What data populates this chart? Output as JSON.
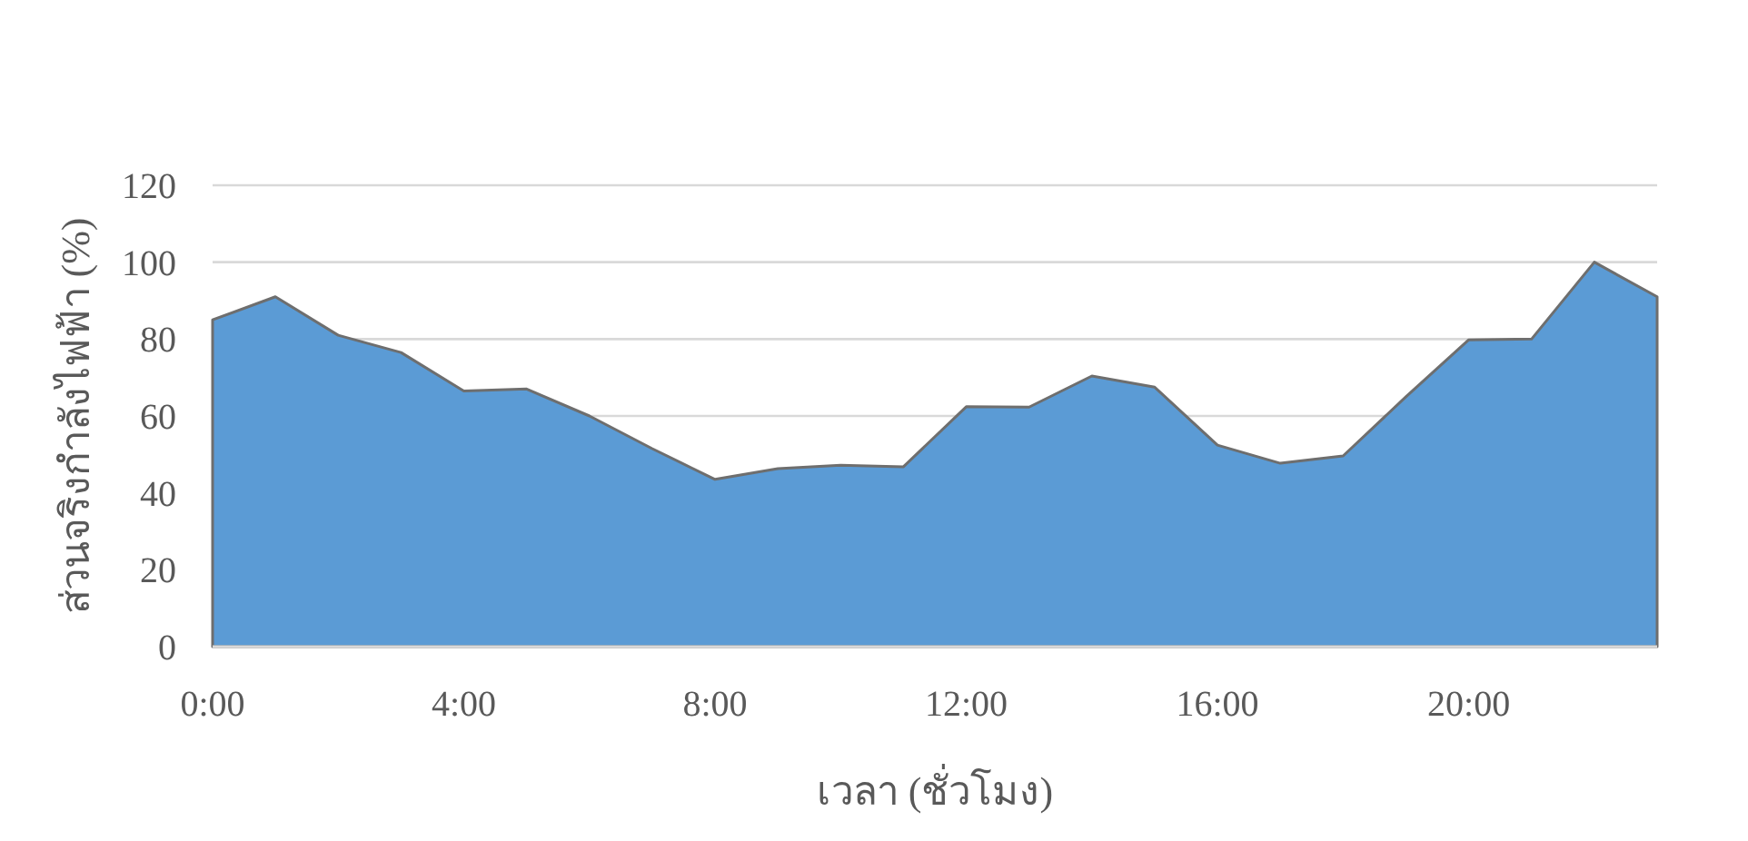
{
  "chart_data": {
    "type": "area",
    "xlabel": "เวลา (ชั่วโมง)",
    "ylabel": "ส่วนจริงกำลังไฟฟ้า (%)",
    "categories": [
      "0:00",
      null,
      null,
      null,
      "4:00",
      null,
      null,
      null,
      "8:00",
      null,
      null,
      null,
      "12:00",
      null,
      null,
      null,
      "16:00",
      null,
      null,
      null,
      "20:00",
      null,
      null,
      null
    ],
    "series": [
      {
        "color": "#5b9bd5",
        "values": [
          85,
          91,
          81,
          76.5,
          66.5,
          67,
          60,
          51.5,
          43.5,
          46.3,
          47.2,
          46.8,
          62.4,
          62.3,
          70.4,
          67.5,
          52.4,
          47.7,
          49.6,
          65,
          79.8,
          80,
          100,
          91
        ]
      }
    ],
    "ylim": [
      0,
      120
    ],
    "yticks": [
      0,
      20,
      40,
      60,
      80,
      100,
      120
    ],
    "grid": "y"
  }
}
